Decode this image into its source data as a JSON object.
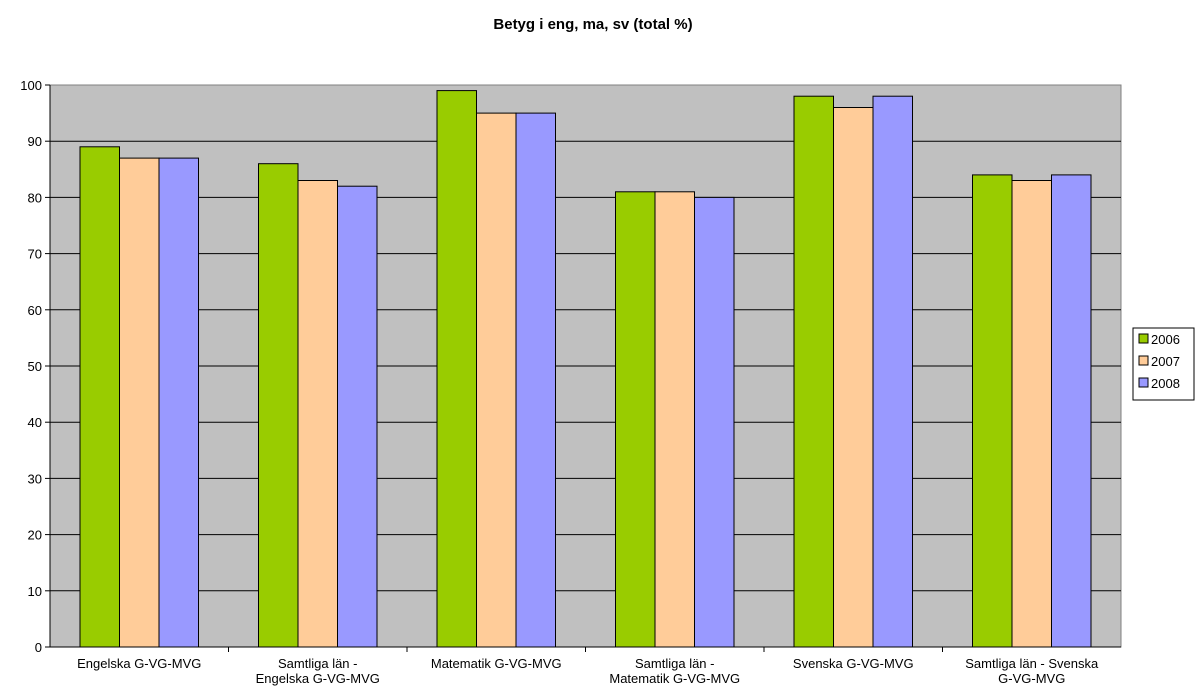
{
  "chart_data": {
    "type": "bar",
    "title": "Betyg i eng, ma, sv (total %)",
    "categories": [
      [
        "Engelska G-VG-MVG"
      ],
      [
        "Samtliga län -",
        "Engelska G-VG-MVG"
      ],
      [
        "Matematik G-VG-MVG"
      ],
      [
        "Samtliga län -",
        "Matematik G-VG-MVG"
      ],
      [
        "Svenska G-VG-MVG"
      ],
      [
        "Samtliga län - Svenska",
        "G-VG-MVG"
      ]
    ],
    "series": [
      {
        "name": "2006",
        "color": "#99cc00",
        "values": [
          89,
          86,
          99,
          81,
          98,
          84
        ]
      },
      {
        "name": "2007",
        "color": "#ffcc99",
        "values": [
          87,
          83,
          95,
          81,
          96,
          83
        ]
      },
      {
        "name": "2008",
        "color": "#9999ff",
        "values": [
          87,
          82,
          95,
          80,
          98,
          84
        ]
      }
    ],
    "ylim": [
      0,
      100
    ],
    "yticks": [
      0,
      10,
      20,
      30,
      40,
      50,
      60,
      70,
      80,
      90,
      100
    ],
    "grid": true,
    "plot_background": "#c0c0c0",
    "legend_position": "right"
  }
}
